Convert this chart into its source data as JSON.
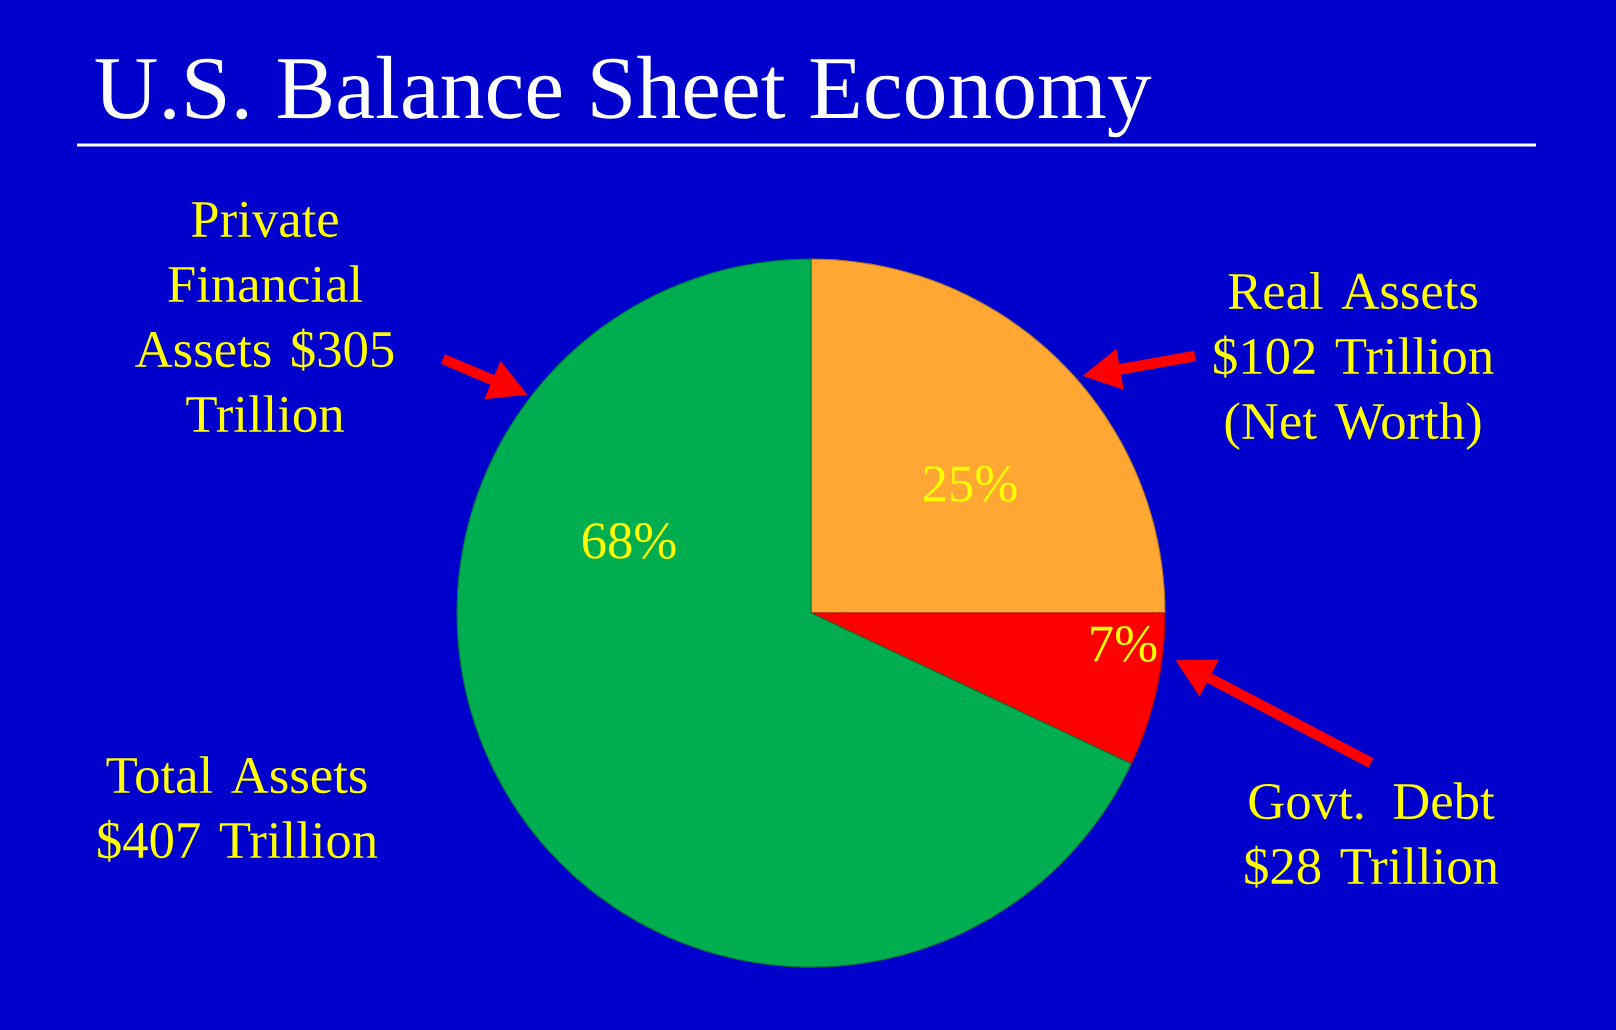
{
  "chart_data": {
    "type": "pie",
    "title": "U.S. Balance Sheet Economy",
    "categories": [
      "Real Assets $102 Trillion (Net Worth)",
      "Govt. Debt $28 Trillion",
      "Private Financial Assets $305 Trillion"
    ],
    "values": [
      25,
      7,
      68
    ],
    "value_labels": [
      "25%",
      "7%",
      "68%"
    ],
    "colors": [
      "#ffa733",
      "#ff0000",
      "#00ad4f"
    ],
    "annotations": [
      "Total Assets $407 Trillion"
    ]
  }
}
